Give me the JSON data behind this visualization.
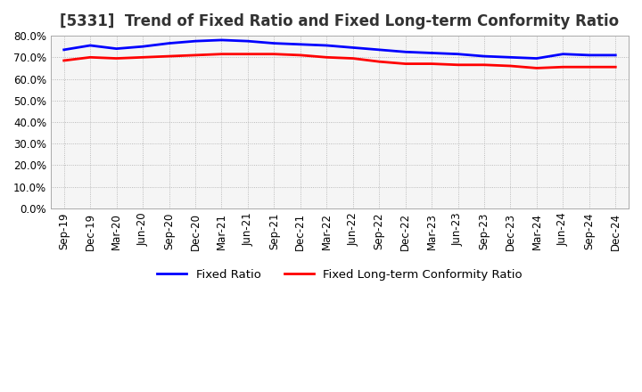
{
  "title": "[5331]  Trend of Fixed Ratio and Fixed Long-term Conformity Ratio",
  "xlabels": [
    "Sep-19",
    "Dec-19",
    "Mar-20",
    "Jun-20",
    "Sep-20",
    "Dec-20",
    "Mar-21",
    "Jun-21",
    "Sep-21",
    "Dec-21",
    "Mar-22",
    "Jun-22",
    "Sep-22",
    "Dec-22",
    "Mar-23",
    "Jun-23",
    "Sep-23",
    "Dec-23",
    "Mar-24",
    "Jun-24",
    "Sep-24",
    "Dec-24"
  ],
  "fixed_ratio": [
    73.5,
    75.5,
    74.0,
    75.0,
    76.5,
    77.5,
    78.0,
    77.5,
    76.5,
    76.0,
    75.5,
    74.5,
    73.5,
    72.5,
    72.0,
    71.5,
    70.5,
    70.0,
    69.5,
    71.5,
    71.0,
    71.0
  ],
  "fixed_lt_conformity": [
    68.5,
    70.0,
    69.5,
    70.0,
    70.5,
    71.0,
    71.5,
    71.5,
    71.5,
    71.0,
    70.0,
    69.5,
    68.0,
    67.0,
    67.0,
    66.5,
    66.5,
    66.0,
    65.0,
    65.5,
    65.5,
    65.5
  ],
  "ylim": [
    0,
    80
  ],
  "yticks": [
    0.0,
    10.0,
    20.0,
    30.0,
    40.0,
    50.0,
    60.0,
    70.0,
    80.0
  ],
  "line_color_fixed": "#0000FF",
  "line_color_lt": "#FF0000",
  "grid_color": "#AAAAAA",
  "background_color": "#FFFFFF",
  "plot_bg_color": "#F5F5F5",
  "legend_fixed": "Fixed Ratio",
  "legend_lt": "Fixed Long-term Conformity Ratio",
  "title_fontsize": 12,
  "tick_fontsize": 8.5,
  "legend_fontsize": 9.5
}
